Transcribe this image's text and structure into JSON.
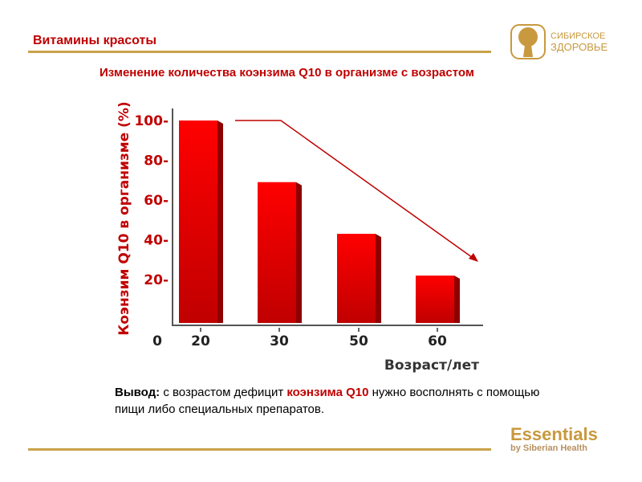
{
  "header": {
    "title": "Витамины красоты",
    "logo_line1": "СИБИРСКОЕ",
    "logo_line2": "ЗДОРОВЬЕ"
  },
  "slide": {
    "subtitle": "Изменение количества коэнзима Q10 в организме с возрастом"
  },
  "conclusion": {
    "label": "Вывод:",
    "text1": " с возрастом дефицит ",
    "highlight": "коэнзима Q10",
    "text2": " нужно восполнять с помощью",
    "line2": "пищи либо специальных препаратов."
  },
  "footer": {
    "brand": "Essentials",
    "tagline": "by Siberian Health"
  },
  "colors": {
    "accent": "#c00000",
    "gold": "#c9a24a",
    "bar": "#e00000"
  },
  "chart_data": {
    "type": "bar",
    "categories": [
      "20",
      "30",
      "50",
      "60"
    ],
    "values": [
      100,
      69,
      43,
      22
    ],
    "ylabel": "Коэнзим Q10 в организме (%)",
    "xlabel": "Возраст/лет",
    "origin_label": "0",
    "yticks": [
      20,
      40,
      60,
      80,
      100
    ],
    "ylim": [
      0,
      100
    ]
  }
}
